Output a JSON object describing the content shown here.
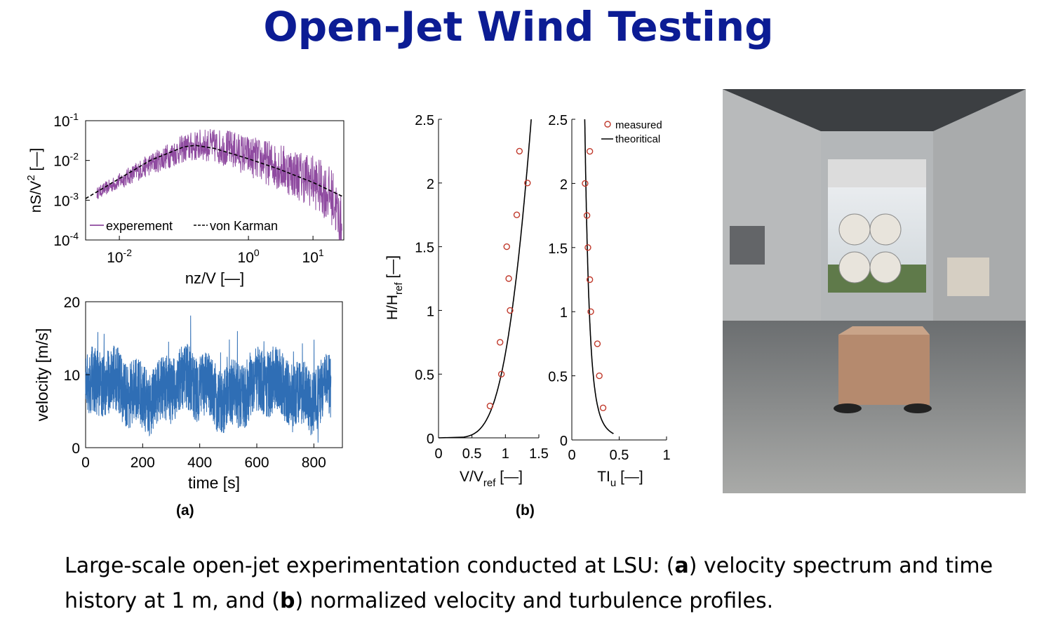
{
  "title": "Open-Jet Wind Testing",
  "colors": {
    "title": "#0c1c94",
    "spectrum": "#7b2b8f",
    "velocity": "#2f6eb5",
    "marker": "#c0392b"
  },
  "labels": {
    "a": "(a)",
    "b": "(b)"
  },
  "caption": {
    "p1": "Large-scale open-jet experimentation conducted at LSU: (",
    "a": "a",
    "p2": ") velocity spectrum and time history at 1 m, and (",
    "b": "b",
    "p3": ") normalized velocity and turbulence profiles."
  },
  "photo": {
    "description": "wind-tunnel-hangar-photo"
  },
  "chart_data": [
    {
      "id": "spectrum",
      "type": "line",
      "xscale": "log",
      "yscale": "log",
      "xlim": [
        0.003,
        30
      ],
      "ylim": [
        0.0001,
        0.1
      ],
      "xticks": [
        "10^-2",
        "10^0",
        "10^1"
      ],
      "xtickvals": [
        0.01,
        1,
        10
      ],
      "xtick_display": [
        {
          "base": "10",
          "exp": "-2"
        },
        {
          "base": "10",
          "exp": "0"
        },
        {
          "base": "10",
          "exp": "1"
        }
      ],
      "ytick_display": [
        {
          "base": "10",
          "exp": "-1"
        },
        {
          "base": "10",
          "exp": "-2"
        },
        {
          "base": "10",
          "exp": "-3"
        },
        {
          "base": "10",
          "exp": "-4"
        }
      ],
      "ytickvals": [
        0.1,
        0.01,
        0.001,
        0.0001
      ],
      "xlabel": "nz/V [—]",
      "ylabel": {
        "main": "nS/V",
        "sup": "2",
        "rest": " [—]"
      },
      "legend": [
        "experement",
        "von Karman"
      ],
      "series": [
        {
          "name": "experement",
          "x": [
            0.0045,
            0.01,
            0.03,
            0.1,
            0.2,
            0.5,
            1,
            3,
            10,
            20,
            28
          ],
          "y": [
            0.0015,
            0.003,
            0.008,
            0.02,
            0.025,
            0.02,
            0.013,
            0.007,
            0.003,
            0.0012,
            0.0002
          ]
        },
        {
          "name": "von Karman",
          "x": [
            0.003,
            0.01,
            0.03,
            0.1,
            0.15,
            0.3,
            1,
            3,
            10,
            30
          ],
          "y": [
            0.0011,
            0.0035,
            0.01,
            0.022,
            0.024,
            0.02,
            0.011,
            0.006,
            0.0028,
            0.0012
          ]
        }
      ]
    },
    {
      "id": "velocity",
      "type": "line",
      "xlim": [
        0,
        900
      ],
      "ylim": [
        0,
        20
      ],
      "xticks": [
        0,
        200,
        400,
        600,
        800
      ],
      "yticks": [
        0,
        10,
        20
      ],
      "xlabel": "time [s]",
      "ylabel": "velocity [m/s]",
      "series": [
        {
          "name": "velocity",
          "mean": 8,
          "spread": 4.5,
          "t_end": 860
        }
      ]
    },
    {
      "id": "velocity-profile",
      "type": "scatter",
      "xlim": [
        0,
        1.5
      ],
      "ylim": [
        0,
        2.5
      ],
      "xticks": [
        0,
        0.5,
        1,
        1.5
      ],
      "yticks": [
        0,
        0.5,
        1,
        1.5,
        2,
        2.5
      ],
      "xlabel": {
        "main": "V/V",
        "sub": "ref",
        "rest": " [—]"
      },
      "ylabel": {
        "main": "H/H",
        "sub": "ref",
        "rest": " [—]"
      },
      "series": [
        {
          "name": "measured",
          "x": [
            0.77,
            0.94,
            0.92,
            1.07,
            1.05,
            1.02,
            1.17,
            1.33,
            1.21
          ],
          "y": [
            0.25,
            0.5,
            0.75,
            1.0,
            1.25,
            1.5,
            1.75,
            2.0,
            2.25
          ]
        },
        {
          "name": "theoritical",
          "alpha": 0.2,
          "vref": 1.0,
          "href": 1.0
        }
      ]
    },
    {
      "id": "turbulence-profile",
      "type": "scatter",
      "xlim": [
        0,
        1
      ],
      "ylim": [
        0,
        2.5
      ],
      "xticks": [
        0,
        0.5,
        1
      ],
      "yticks": [
        0,
        0.5,
        1,
        1.5,
        2,
        2.5
      ],
      "xlabel": {
        "main": "TI",
        "sub": "u",
        "rest": " [—]"
      },
      "legend": [
        "measured",
        "theoritical"
      ],
      "series": [
        {
          "name": "measured",
          "x": [
            0.33,
            0.29,
            0.27,
            0.2,
            0.19,
            0.17,
            0.16,
            0.14,
            0.19
          ],
          "y": [
            0.25,
            0.5,
            0.75,
            1.0,
            1.25,
            1.5,
            1.75,
            2.0,
            2.25
          ]
        },
        {
          "name": "theoritical"
        }
      ]
    }
  ]
}
